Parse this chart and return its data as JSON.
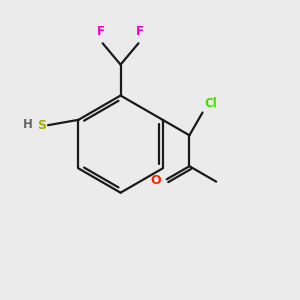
{
  "bg_color": "#ebebeb",
  "bond_color": "#1a1a1a",
  "atom_colors": {
    "F": "#ee00cc",
    "Cl": "#44dd00",
    "O": "#ff2200",
    "S": "#aaaa00",
    "H": "#666666",
    "C": "#1a1a1a"
  },
  "figsize": [
    3.0,
    3.0
  ],
  "dpi": 100
}
